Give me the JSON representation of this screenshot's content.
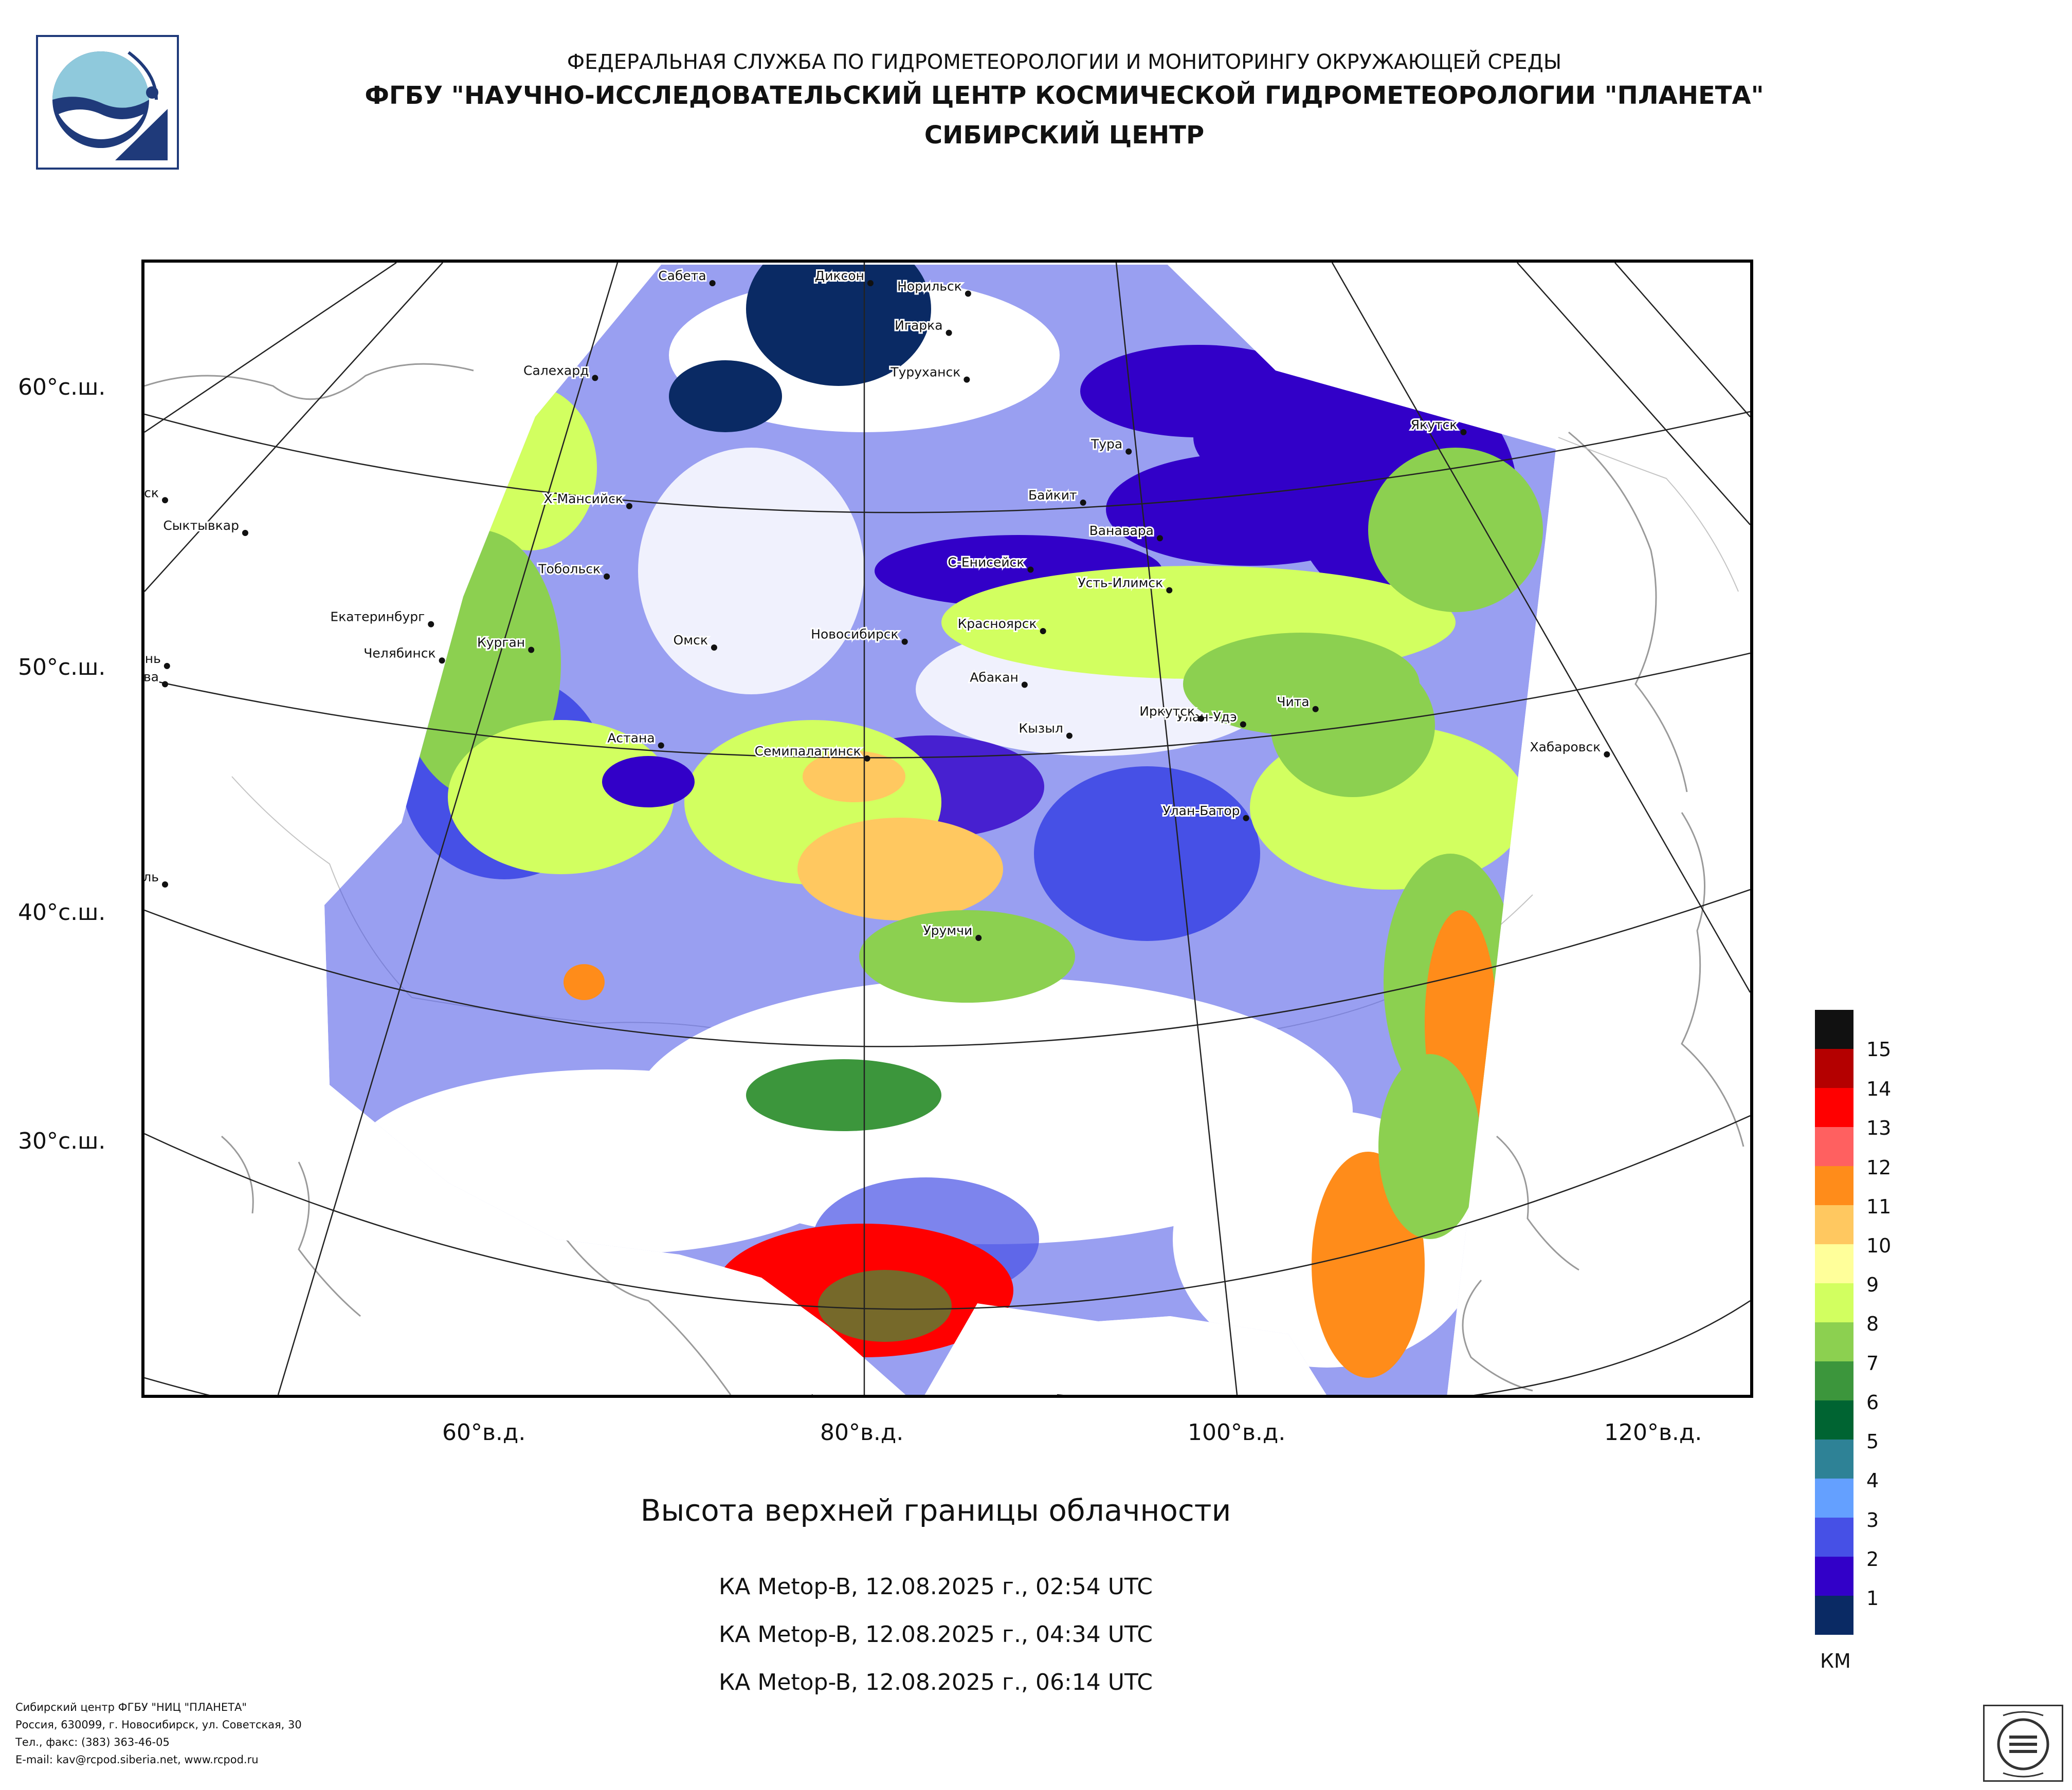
{
  "header": {
    "line1": "ФЕДЕРАЛЬНАЯ СЛУЖБА ПО ГИДРОМЕТЕОРОЛОГИИ И МОНИТОРИНГУ ОКРУЖАЮЩЕЙ СРЕДЫ",
    "line2": "ФГБУ \"НАУЧНО-ИССЛЕДОВАТЕЛЬСКИЙ ЦЕНТР КОСМИЧЕСКОЙ ГИДРОМЕТЕОРОЛОГИИ \"ПЛАНЕТА\"",
    "line3": "СИБИРСКИЙ ЦЕНТР"
  },
  "map": {
    "lat_labels": [
      "60°с.ш.",
      "50°с.ш.",
      "40°с.ш.",
      "30°с.ш."
    ],
    "lon_labels": [
      "60°в.д.",
      "80°в.д.",
      "100°в.д.",
      "120°в.д."
    ],
    "cities": [
      {
        "name": "Диксон",
        "lat": 73.5,
        "lon": 80.5
      },
      {
        "name": "Сабета",
        "lat": 71.3,
        "lon": 72.0
      },
      {
        "name": "Норильск",
        "lat": 69.3,
        "lon": 88.2
      },
      {
        "name": "Архангельск",
        "lat": 64.5,
        "lon": 40.5
      },
      {
        "name": "Игарка",
        "lat": 67.5,
        "lon": 86.6
      },
      {
        "name": "Салехард",
        "lat": 66.5,
        "lon": 66.6
      },
      {
        "name": "Туруханск",
        "lat": 65.8,
        "lon": 87.9
      },
      {
        "name": "Якутск",
        "lat": 62.0,
        "lon": 129.7
      },
      {
        "name": "Тура",
        "lat": 64.3,
        "lon": 100.2
      },
      {
        "name": "Сыктывкар",
        "lat": 61.7,
        "lon": 50.8
      },
      {
        "name": "Байкит",
        "lat": 61.7,
        "lon": 96.4
      },
      {
        "name": "Ванавара",
        "lat": 60.3,
        "lon": 102.3
      },
      {
        "name": "Москва",
        "lat": 55.8,
        "lon": 37.6
      },
      {
        "name": "Х-Мансийск",
        "lat": 61.0,
        "lon": 69.0
      },
      {
        "name": "С-Енисейск",
        "lat": 58.5,
        "lon": 92.2
      },
      {
        "name": "Хабаровск",
        "lat": 48.5,
        "lon": 135.1
      },
      {
        "name": "Казань",
        "lat": 55.8,
        "lon": 49.1
      },
      {
        "name": "Тобольск",
        "lat": 58.2,
        "lon": 68.3
      },
      {
        "name": "Усть-Илимск",
        "lat": 58.0,
        "lon": 102.7
      },
      {
        "name": "Екатеринбург",
        "lat": 56.8,
        "lon": 60.6
      },
      {
        "name": "Челябинск",
        "lat": 55.2,
        "lon": 61.4
      },
      {
        "name": "Курган",
        "lat": 55.4,
        "lon": 65.3
      },
      {
        "name": "Красноярск",
        "lat": 56.0,
        "lon": 92.9
      },
      {
        "name": "Омск",
        "lat": 55.0,
        "lon": 73.4
      },
      {
        "name": "Новосибирск",
        "lat": 55.0,
        "lon": 82.9
      },
      {
        "name": "Чита",
        "lat": 52.0,
        "lon": 113.5
      },
      {
        "name": "Абакан",
        "lat": 53.7,
        "lon": 91.4
      },
      {
        "name": "Улан-Удэ",
        "lat": 51.8,
        "lon": 107.6
      },
      {
        "name": "Иркутск",
        "lat": 52.3,
        "lon": 104.3
      },
      {
        "name": "Кызыл",
        "lat": 51.7,
        "lon": 94.4
      },
      {
        "name": "Астана",
        "lat": 51.2,
        "lon": 71.4
      },
      {
        "name": "Ставрополь",
        "lat": 45.0,
        "lon": 42.0
      },
      {
        "name": "Улан-Батор",
        "lat": 47.9,
        "lon": 106.9
      },
      {
        "name": "Семипалатинск",
        "lat": 50.4,
        "lon": 80.2
      },
      {
        "name": "Урумчи",
        "lat": 43.8,
        "lon": 87.6
      }
    ]
  },
  "legend": {
    "unit": "КМ",
    "items": [
      {
        "label": "",
        "color": "#111111"
      },
      {
        "label": "15",
        "color": "#b40000"
      },
      {
        "label": "14",
        "color": "#ff0000"
      },
      {
        "label": "13",
        "color": "#ff6060"
      },
      {
        "label": "12",
        "color": "#ff8c1a"
      },
      {
        "label": "11",
        "color": "#ffc860"
      },
      {
        "label": "10",
        "color": "#ffff9a"
      },
      {
        "label": "9",
        "color": "#d2ff60"
      },
      {
        "label": "8",
        "color": "#8cd050"
      },
      {
        "label": "7",
        "color": "#3c963c"
      },
      {
        "label": "6",
        "color": "#006432"
      },
      {
        "label": "5",
        "color": "#2e8296"
      },
      {
        "label": "4",
        "color": "#64a0ff"
      },
      {
        "label": "3",
        "color": "#4650e6"
      },
      {
        "label": "2",
        "color": "#3200c8"
      },
      {
        "label": "1",
        "color": "#0a2a64"
      }
    ]
  },
  "caption": {
    "title": "Высота верхней границы облачности",
    "passes": [
      "КА Metop-B, 12.08.2025 г., 02:54 UTC",
      "КА Metop-B, 12.08.2025 г., 04:34 UTC",
      "КА Metop-B, 12.08.2025 г., 06:14 UTC"
    ]
  },
  "footer": {
    "line1": "Сибирский центр ФГБУ \"НИЦ \"ПЛАНЕТА\"",
    "line2": "Россия, 630099, г. Новосибирск, ул. Советская, 30",
    "line3": "Тел., факс: (383) 363-46-05",
    "line4": "E-mail: kav@rcpod.siberia.net, www.rcpod.ru"
  },
  "certificate": {
    "top_text": "ДОБРОСОВЕСТНЫЙ",
    "mark": "ИСО 9001 -2015",
    "bottom_text": "ПОСТАВЩИК"
  }
}
